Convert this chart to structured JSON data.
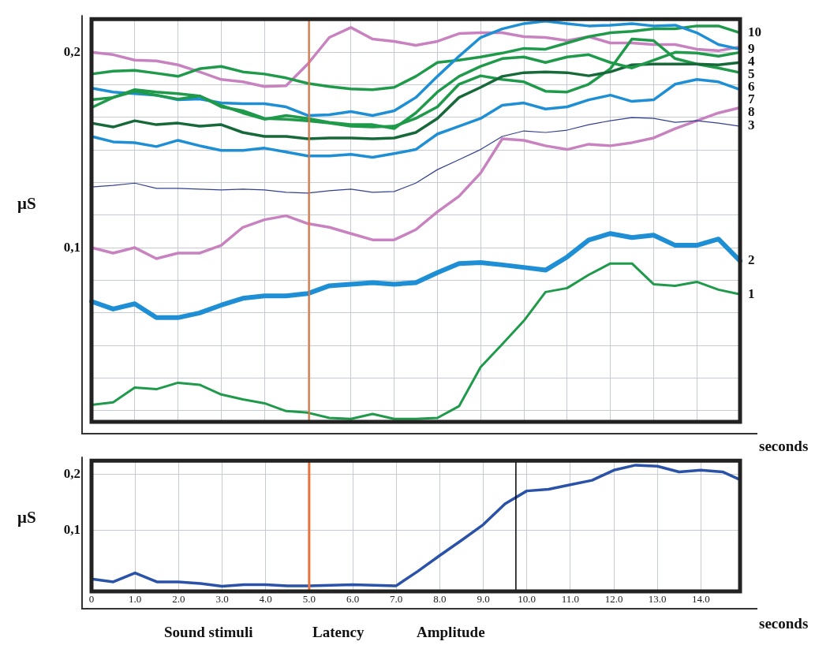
{
  "chart_data": [
    {
      "type": "line",
      "ylabel": "μS",
      "xlabel": "seconds",
      "legend": false,
      "grid": true,
      "tick_labels": "y",
      "marker": "none",
      "line_style": "solid",
      "categories": [
        null,
        null,
        null,
        null,
        null,
        null,
        null,
        null,
        null,
        null,
        null,
        null,
        null,
        null,
        null,
        null,
        null,
        null,
        null,
        null,
        null,
        null,
        null,
        null,
        null,
        null,
        null,
        null,
        null,
        null,
        null
      ],
      "ylim": [
        0.011,
        0.217
      ],
      "yticks": [
        {
          "value": 0.0167,
          "label": null
        },
        {
          "value": 0.0333,
          "label": null
        },
        {
          "value": 0.05,
          "label": null
        },
        {
          "value": 0.0667,
          "label": null
        },
        {
          "value": 0.0833,
          "label": null
        },
        {
          "value": 0.1,
          "label": "0,1"
        },
        {
          "value": 0.1167,
          "label": null
        },
        {
          "value": 0.1333,
          "label": null
        },
        {
          "value": 0.15,
          "label": null
        },
        {
          "value": 0.1667,
          "label": null
        },
        {
          "value": 0.1833,
          "label": null
        },
        {
          "value": 0.2,
          "label": "0,2"
        }
      ],
      "series": [
        {
          "name": "1",
          "color": "#1f9a4a",
          "values": [
            0.0197,
            0.021,
            0.0285,
            0.0277,
            0.031,
            0.03,
            0.025,
            0.0225,
            0.0205,
            0.0165,
            0.0157,
            0.013,
            0.0125,
            0.015,
            0.0125,
            0.0125,
            0.013,
            0.019,
            0.039,
            0.0507,
            0.0627,
            0.0774,
            0.0794,
            0.0862,
            0.092,
            0.092,
            0.0814,
            0.0806,
            0.0826,
            0.0786,
            0.0762
          ]
        },
        {
          "name": "2",
          "color": "#1e8fd5",
          "values": [
            0.0726,
            0.0687,
            0.0714,
            0.0643,
            0.0643,
            0.0667,
            0.0707,
            0.0742,
            0.0754,
            0.0754,
            0.0766,
            0.0806,
            0.0814,
            0.0822,
            0.0814,
            0.0822,
            0.0873,
            0.092,
            0.0925,
            0.0913,
            0.09,
            0.0886,
            0.0953,
            0.104,
            0.1073,
            0.1053,
            0.1065,
            0.1013,
            0.1013,
            0.1045,
            0.0933
          ]
        },
        {
          "name": "3",
          "color": "#34408f",
          "values": [
            0.1311,
            0.1319,
            0.1331,
            0.1304,
            0.1304,
            0.13,
            0.1296,
            0.13,
            0.1296,
            0.1284,
            0.128,
            0.1292,
            0.13,
            0.1284,
            0.1288,
            0.1331,
            0.14,
            0.1451,
            0.1503,
            0.157,
            0.1598,
            0.159,
            0.1602,
            0.163,
            0.165,
            0.1666,
            0.1662,
            0.1642,
            0.165,
            0.1638,
            0.1622
          ]
        },
        {
          "name": "4",
          "color": "#1f9a4a",
          "values": [
            0.1717,
            0.1769,
            0.1809,
            0.1797,
            0.1789,
            0.1777,
            0.1729,
            0.169,
            0.1658,
            0.1677,
            0.1662,
            0.1642,
            0.163,
            0.163,
            0.161,
            0.169,
            0.1797,
            0.1877,
            0.1928,
            0.1968,
            0.1976,
            0.1948,
            0.1976,
            0.1988,
            0.1948,
            0.192,
            0.196,
            0.2,
            0.1996,
            0.198,
            0.2
          ]
        },
        {
          "name": "5",
          "color": "#17693a",
          "values": [
            0.1638,
            0.1618,
            0.165,
            0.163,
            0.1638,
            0.1622,
            0.163,
            0.159,
            0.157,
            0.157,
            0.1558,
            0.1562,
            0.1562,
            0.1558,
            0.1562,
            0.159,
            0.1662,
            0.1769,
            0.1821,
            0.1877,
            0.1896,
            0.19,
            0.1896,
            0.188,
            0.19,
            0.1936,
            0.194,
            0.194,
            0.194,
            0.1936,
            0.1948
          ]
        },
        {
          "name": "6",
          "color": "#1f9a4a",
          "values": [
            0.1757,
            0.1769,
            0.1801,
            0.1781,
            0.1761,
            0.1777,
            0.1721,
            0.1701,
            0.1662,
            0.1658,
            0.165,
            0.1638,
            0.1622,
            0.1618,
            0.1622,
            0.1662,
            0.1721,
            0.1837,
            0.188,
            0.1861,
            0.1849,
            0.1801,
            0.1797,
            0.1837,
            0.1916,
            0.2068,
            0.206,
            0.1968,
            0.194,
            0.192,
            0.1896
          ]
        },
        {
          "name": "7",
          "color": "#1e8fd5",
          "values": [
            0.157,
            0.1542,
            0.1538,
            0.1518,
            0.155,
            0.1522,
            0.1498,
            0.1498,
            0.151,
            0.149,
            0.147,
            0.147,
            0.1478,
            0.1463,
            0.1482,
            0.1503,
            0.1582,
            0.1622,
            0.1662,
            0.1729,
            0.1741,
            0.171,
            0.1721,
            0.1757,
            0.1781,
            0.1749,
            0.1757,
            0.1837,
            0.1861,
            0.1849,
            0.1809
          ]
        },
        {
          "name": "8",
          "color": "#c882c0",
          "values": [
            0.1001,
            0.0973,
            0.1001,
            0.0945,
            0.0973,
            0.0973,
            0.1013,
            0.1105,
            0.1144,
            0.1164,
            0.1124,
            0.1105,
            0.1073,
            0.1041,
            0.1041,
            0.1093,
            0.1184,
            0.1264,
            0.1383,
            0.1558,
            0.155,
            0.1522,
            0.1503,
            0.153,
            0.1522,
            0.1538,
            0.1562,
            0.161,
            0.165,
            0.169,
            0.1717
          ]
        },
        {
          "name": "9",
          "color": "#1e8fd5",
          "values": [
            0.1817,
            0.1797,
            0.1789,
            0.1781,
            0.1757,
            0.1761,
            0.1741,
            0.1737,
            0.1737,
            0.1721,
            0.1677,
            0.1681,
            0.1697,
            0.1677,
            0.1701,
            0.1769,
            0.1877,
            0.198,
            0.2076,
            0.212,
            0.2147,
            0.216,
            0.2147,
            0.2135,
            0.2139,
            0.2147,
            0.2135,
            0.2139,
            0.21,
            0.204,
            0.2016
          ]
        },
        {
          "name": "10",
          "color": "#1f9a4a",
          "values": [
            0.1889,
            0.1904,
            0.1908,
            0.1893,
            0.1877,
            0.1916,
            0.1928,
            0.19,
            0.1889,
            0.1869,
            0.1841,
            0.1825,
            0.1813,
            0.1809,
            0.1821,
            0.1877,
            0.1948,
            0.196,
            0.1976,
            0.1996,
            0.202,
            0.2016,
            0.2048,
            0.208,
            0.21,
            0.2107,
            0.212,
            0.212,
            0.2135,
            0.2135,
            0.21
          ]
        },
        {
          "color": "#c882c0",
          "values": [
            0.2,
            0.1988,
            0.196,
            0.1956,
            0.1936,
            0.19,
            0.1861,
            0.1849,
            0.1825,
            0.1829,
            0.194,
            0.2076,
            0.2127,
            0.2068,
            0.2056,
            0.2036,
            0.2056,
            0.2096,
            0.21,
            0.21,
            0.208,
            0.2076,
            0.206,
            0.208,
            0.2048,
            0.2048,
            0.204,
            0.204,
            0.2016,
            0.2008,
            0.2028
          ]
        }
      ]
    },
    {
      "type": "line",
      "ylabel": "μS",
      "xlabel": "seconds",
      "legend": false,
      "grid": true,
      "marker": "none",
      "line_style": "solid",
      "x": [
        0,
        0.5,
        1,
        1.5,
        2,
        2.5,
        3,
        3.5,
        4,
        4.5,
        5,
        6,
        7,
        7.5,
        8,
        8.5,
        9,
        9.5,
        10,
        10.5,
        11,
        11.5,
        12,
        12.5,
        13,
        13.5,
        14,
        14.5,
        14.9
      ],
      "xlim": [
        0,
        14.9
      ],
      "xticks": [
        0,
        {
          "value": 1,
          "label": "1.0"
        },
        {
          "value": 2,
          "label": "2.0"
        },
        {
          "value": 3,
          "label": "3.0"
        },
        {
          "value": 4,
          "label": "4.0"
        },
        {
          "value": 5,
          "label": "5.0"
        },
        {
          "value": 6,
          "label": "6.0"
        },
        {
          "value": 7,
          "label": "7.0"
        },
        {
          "value": 8,
          "label": "8.0"
        },
        {
          "value": 9,
          "label": "9.0"
        },
        {
          "value": 10,
          "label": "10.0"
        },
        {
          "value": 11,
          "label": "11.0"
        },
        {
          "value": 12,
          "label": "12.0"
        },
        {
          "value": 13,
          "label": "13.0"
        },
        {
          "value": 14,
          "label": "14.0"
        }
      ],
      "ylim": [
        -0.009,
        0.224
      ],
      "yticks": [
        {
          "value": 0.1,
          "label": "0,1"
        },
        {
          "value": 0.2,
          "label": "0,2"
        }
      ],
      "ref_lines": [
        {
          "axis": "x",
          "value": 5,
          "color": "#e8743b"
        },
        {
          "axis": "x",
          "value": 9.75,
          "color": "#000000"
        }
      ],
      "annotations": [
        "Sound stimuli",
        "Latency",
        "Amplitude"
      ],
      "series": [
        {
          "color": "#2a52a8",
          "values": [
            0.013,
            0.008,
            0.024,
            0.008,
            0.008,
            0.005,
            0,
            0.003,
            0.003,
            0.001,
            0.001,
            0.003,
            0.001,
            0.027,
            0.055,
            0.082,
            0.11,
            0.147,
            0.17,
            0.173,
            0.181,
            0.189,
            0.207,
            0.216,
            0.214,
            0.204,
            0.207,
            0.204,
            0.19
          ]
        }
      ]
    }
  ]
}
